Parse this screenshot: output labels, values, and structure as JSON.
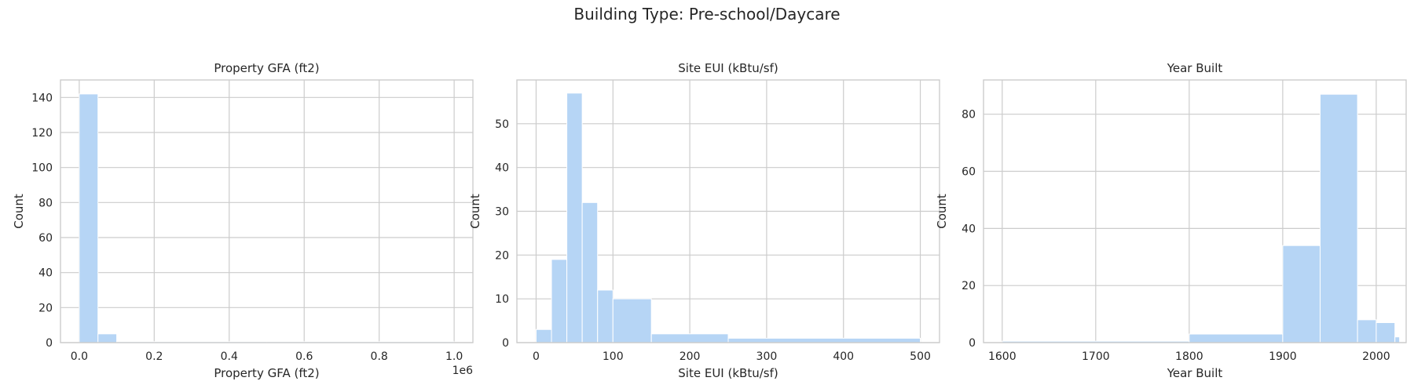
{
  "suptitle": "Building Type: Pre-school/Daycare",
  "chart_data": [
    {
      "type": "bar",
      "title": "Property GFA (ft2)",
      "xlabel": "Property GFA (ft2)",
      "ylabel": "Count",
      "offset_label": "1e6",
      "xlim": [
        -50000,
        1050000
      ],
      "ylim": [
        0,
        150
      ],
      "xticks": [
        0,
        200000,
        400000,
        600000,
        800000,
        1000000
      ],
      "xticklabels": [
        "0.0",
        "0.2",
        "0.4",
        "0.6",
        "0.8",
        "1.0"
      ],
      "yticks": [
        0,
        20,
        40,
        60,
        80,
        100,
        120,
        140
      ],
      "grid": true,
      "bins": [
        {
          "x0": 0,
          "x1": 50000,
          "count": 142
        },
        {
          "x0": 50000,
          "x1": 100000,
          "count": 5
        },
        {
          "x0": 100000,
          "x1": 200000,
          "count": 0.5
        },
        {
          "x0": 200000,
          "x1": 500000,
          "count": 0.5
        },
        {
          "x0": 500000,
          "x1": 1000000,
          "count": 0.5
        }
      ]
    },
    {
      "type": "bar",
      "title": "Site EUI (kBtu/sf)",
      "xlabel": "Site EUI (kBtu/sf)",
      "ylabel": "Count",
      "xlim": [
        -25,
        525
      ],
      "ylim": [
        0,
        60
      ],
      "xticks": [
        0,
        100,
        200,
        300,
        400,
        500
      ],
      "xticklabels": [
        "0",
        "100",
        "200",
        "300",
        "400",
        "500"
      ],
      "yticks": [
        0,
        10,
        20,
        30,
        40,
        50
      ],
      "grid": true,
      "bins": [
        {
          "x0": 0,
          "x1": 20,
          "count": 3
        },
        {
          "x0": 20,
          "x1": 40,
          "count": 19
        },
        {
          "x0": 40,
          "x1": 60,
          "count": 57
        },
        {
          "x0": 60,
          "x1": 80,
          "count": 32
        },
        {
          "x0": 80,
          "x1": 100,
          "count": 12
        },
        {
          "x0": 100,
          "x1": 150,
          "count": 10
        },
        {
          "x0": 150,
          "x1": 250,
          "count": 2
        },
        {
          "x0": 250,
          "x1": 500,
          "count": 1
        }
      ]
    },
    {
      "type": "bar",
      "title": "Year Built",
      "xlabel": "Year Built",
      "ylabel": "Count",
      "xlim": [
        1580,
        2032
      ],
      "ylim": [
        0,
        92
      ],
      "xticks": [
        1600,
        1700,
        1800,
        1900,
        2000
      ],
      "xticklabels": [
        "1600",
        "1700",
        "1800",
        "1900",
        "2000"
      ],
      "yticks": [
        0,
        20,
        40,
        60,
        80
      ],
      "grid": true,
      "bins": [
        {
          "x0": 1600,
          "x1": 1800,
          "count": 0.5
        },
        {
          "x0": 1800,
          "x1": 1900,
          "count": 3
        },
        {
          "x0": 1900,
          "x1": 1940,
          "count": 34
        },
        {
          "x0": 1940,
          "x1": 1980,
          "count": 87
        },
        {
          "x0": 1980,
          "x1": 2000,
          "count": 8
        },
        {
          "x0": 2000,
          "x1": 2020,
          "count": 7
        },
        {
          "x0": 2020,
          "x1": 2025,
          "count": 2
        }
      ]
    }
  ]
}
